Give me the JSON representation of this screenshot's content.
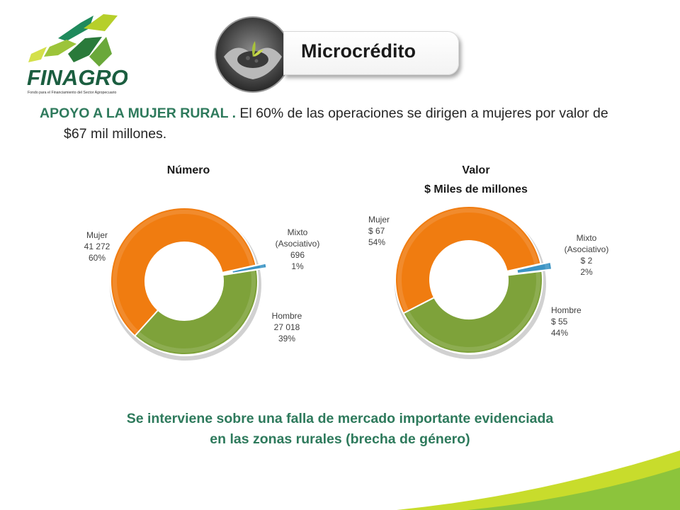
{
  "header": {
    "logo_text": "FINAGRO",
    "logo_tagline": "Fondo para el Financiamiento del Sector Agropecuario",
    "title": "Microcrédito"
  },
  "intro": {
    "highlight": "APOYO A LA MUJER RURAL .",
    "rest": "El 60% de las operaciones se dirigen a mujeres por valor de $67 mil millones."
  },
  "footer": {
    "line1": "Se interviene sobre una falla de mercado importante evidenciada",
    "line2": "en las zonas rurales (brecha de género)"
  },
  "colors": {
    "mujer": "#f07c10",
    "hombre": "#7ea23a",
    "mixto": "#3c94c4",
    "accent_green": "#2e7a5c",
    "swoosh_yellow": "#c8dc2c",
    "swoosh_green": "#8cc43c"
  },
  "chart_data": [
    {
      "type": "pie",
      "variant": "donut",
      "title": "Número",
      "subtitle": "",
      "categories": [
        "Mujer",
        "Mixto (Asociativo)",
        "Hombre"
      ],
      "values": [
        41272,
        696,
        27018
      ],
      "percent": [
        60,
        1,
        39
      ],
      "labels": [
        [
          "Mujer",
          "41 272",
          "60%"
        ],
        [
          "Mixto",
          "(Asociativo)",
          "696",
          "1%"
        ],
        [
          "Hombre",
          "27 018",
          "39%"
        ]
      ],
      "exploded": "Mixto (Asociativo)"
    },
    {
      "type": "pie",
      "variant": "donut",
      "title": "Valor",
      "subtitle": "$ Miles de millones",
      "categories": [
        "Mujer",
        "Mixto (Asociativo)",
        "Hombre"
      ],
      "values": [
        67,
        2,
        55
      ],
      "percent": [
        54,
        2,
        44
      ],
      "labels": [
        [
          "Mujer",
          "$ 67",
          "54%"
        ],
        [
          "Mixto",
          "(Asociativo)",
          "$ 2",
          "2%"
        ],
        [
          "Hombre",
          "$ 55",
          "44%"
        ]
      ],
      "exploded": "Mixto (Asociativo)"
    }
  ]
}
